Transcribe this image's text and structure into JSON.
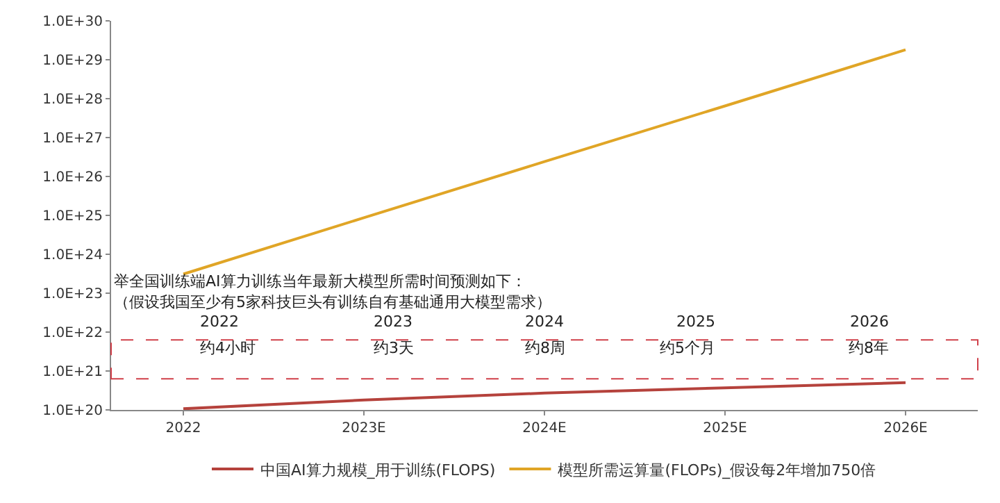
{
  "chart_data": {
    "type": "line",
    "categories": [
      "2022",
      "2023E",
      "2024E",
      "2025E",
      "2026E"
    ],
    "series": [
      {
        "name": "中国AI算力规模_用于训练(FLOPS)",
        "color": "#b5423c",
        "values": [
          1.07e+20,
          1.8e+20,
          2.7e+20,
          3.7e+20,
          5e+20
        ]
      },
      {
        "name": "模型所需运算量(FLOPs)_假设每2年增加750倍",
        "color": "#e0a526",
        "values": [
          3.1e+23,
          8.7e+24,
          2.4e+26,
          6.5e+27,
          1.8e+29
        ]
      }
    ],
    "log": true,
    "ylim": [
      1e+20,
      1e+30
    ],
    "yticks": [
      {
        "value": 1e+20,
        "label": "1.0E+20"
      },
      {
        "value": 1e+21,
        "label": "1.0E+21"
      },
      {
        "value": 1e+22,
        "label": "1.0E+22"
      },
      {
        "value": 1e+23,
        "label": "1.0E+23"
      },
      {
        "value": 1e+24,
        "label": "1.0E+24"
      },
      {
        "value": 1e+25,
        "label": "1.0E+25"
      },
      {
        "value": 1e+26,
        "label": "1.0E+26"
      },
      {
        "value": 1e+27,
        "label": "1.0E+27"
      },
      {
        "value": 1e+28,
        "label": "1.0E+28"
      },
      {
        "value": 1e+29,
        "label": "1.0E+29"
      },
      {
        "value": 1e+30,
        "label": "1.0E+30"
      }
    ],
    "legend": "bottom",
    "marker": "none",
    "line_style": "solid",
    "annotations": [
      "举全国训练端AI算力训练当年最新大模型所需时间预测如下：",
      "（假设我国至少有5家科技巨头有训练自有基础通用大模型需求）",
      "2022",
      "2023",
      "2024",
      "2025",
      "2026",
      "约4小时",
      "约3天",
      "约8周",
      "约5个月",
      "约8年"
    ]
  }
}
